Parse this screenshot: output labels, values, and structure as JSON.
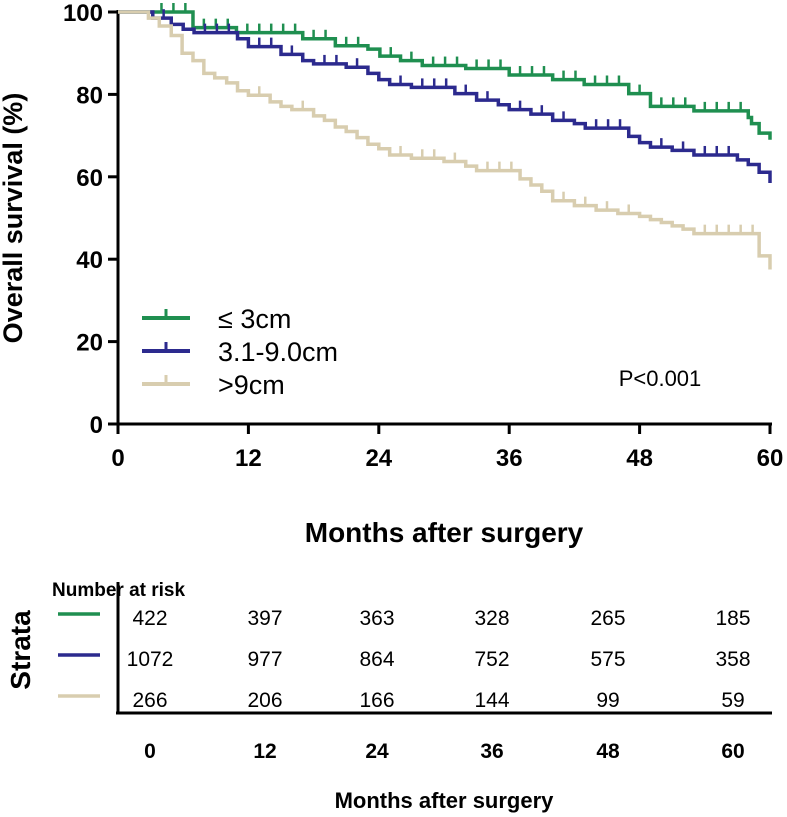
{
  "chart_data": {
    "type": "line",
    "subtype": "kaplan-meier",
    "xlabel": "Months after surgery",
    "ylabel": "Overall survival (%)",
    "xlim": [
      0,
      60
    ],
    "ylim": [
      0,
      100
    ],
    "xticks": [
      "0",
      "12",
      "24",
      "36",
      "48",
      "60"
    ],
    "yticks": [
      "0",
      "20",
      "40",
      "60",
      "80",
      "100"
    ],
    "annotation": "P<0.001",
    "legend_placement": "bottom-left",
    "series": [
      {
        "name": "≤ 3cm",
        "color": "#1f8f50",
        "steps": [
          [
            0,
            100
          ],
          [
            3,
            100
          ],
          [
            6.9,
            96.2
          ],
          [
            10.9,
            95
          ],
          [
            17,
            93.5
          ],
          [
            20,
            91.8
          ],
          [
            23,
            91
          ],
          [
            24.1,
            89.3
          ],
          [
            26,
            88.2
          ],
          [
            28,
            87
          ],
          [
            32,
            86.3
          ],
          [
            36,
            84.7
          ],
          [
            40,
            83.6
          ],
          [
            42.9,
            82.4
          ],
          [
            47,
            80.2
          ],
          [
            49,
            77.1
          ],
          [
            53,
            76
          ],
          [
            58,
            74.4
          ],
          [
            58.3,
            72.9
          ],
          [
            59,
            70.6
          ],
          [
            60,
            69
          ]
        ]
      },
      {
        "name": "3.1-9.0cm",
        "color": "#2c2a8e",
        "steps": [
          [
            0,
            100
          ],
          [
            3.2,
            98.5
          ],
          [
            4.9,
            97
          ],
          [
            6,
            95.8
          ],
          [
            7,
            95
          ],
          [
            11,
            93.5
          ],
          [
            12,
            91.6
          ],
          [
            15,
            89.7
          ],
          [
            17,
            88.2
          ],
          [
            18,
            87.4
          ],
          [
            21,
            86.6
          ],
          [
            23,
            85.1
          ],
          [
            24,
            83.6
          ],
          [
            25,
            82.4
          ],
          [
            27,
            81.7
          ],
          [
            31,
            80.2
          ],
          [
            33,
            78.6
          ],
          [
            35,
            77.5
          ],
          [
            36,
            76.3
          ],
          [
            38,
            75.2
          ],
          [
            40,
            73.7
          ],
          [
            42,
            72.9
          ],
          [
            43,
            71.8
          ],
          [
            47,
            69.8
          ],
          [
            48,
            68.3
          ],
          [
            49,
            67.2
          ],
          [
            51,
            66.4
          ],
          [
            53,
            65.3
          ],
          [
            57,
            64.1
          ],
          [
            58,
            63
          ],
          [
            59,
            61.1
          ],
          [
            60,
            58.5
          ]
        ]
      },
      {
        "name": ">9cm",
        "color": "#d8cdaf",
        "steps": [
          [
            0,
            100
          ],
          [
            2.8,
            98.5
          ],
          [
            3.8,
            96.6
          ],
          [
            4.9,
            94.3
          ],
          [
            5.9,
            90
          ],
          [
            6.9,
            88.2
          ],
          [
            7.9,
            85.1
          ],
          [
            8.9,
            84
          ],
          [
            10,
            82.8
          ],
          [
            11,
            80.9
          ],
          [
            12,
            79.8
          ],
          [
            14,
            78.2
          ],
          [
            15,
            77.1
          ],
          [
            16,
            76.3
          ],
          [
            18,
            74.8
          ],
          [
            19,
            73.7
          ],
          [
            20,
            72.1
          ],
          [
            21,
            71
          ],
          [
            22,
            69.5
          ],
          [
            23,
            67.9
          ],
          [
            24,
            66.8
          ],
          [
            25,
            65.3
          ],
          [
            27,
            64.5
          ],
          [
            30,
            63.7
          ],
          [
            32,
            62.6
          ],
          [
            33,
            61.5
          ],
          [
            37,
            59.5
          ],
          [
            38,
            58
          ],
          [
            39,
            56.5
          ],
          [
            40,
            54.2
          ],
          [
            42,
            53
          ],
          [
            44,
            51.9
          ],
          [
            46,
            51.1
          ],
          [
            48,
            50.4
          ],
          [
            49,
            49.6
          ],
          [
            50,
            48.9
          ],
          [
            51,
            48.1
          ],
          [
            52,
            47.3
          ],
          [
            53,
            46.2
          ],
          [
            59,
            40.8
          ],
          [
            60,
            37.5
          ]
        ]
      }
    ],
    "risk_table": {
      "title": "Number at risk",
      "ylabel": "Strata",
      "xlabel": "Months after surgery",
      "times": [
        "0",
        "12",
        "24",
        "36",
        "48",
        "60"
      ],
      "rows": [
        [
          "422",
          "397",
          "363",
          "328",
          "265",
          "185"
        ],
        [
          "1072",
          "977",
          "864",
          "752",
          "575",
          "358"
        ],
        [
          "266",
          "206",
          "166",
          "144",
          "99",
          "59"
        ]
      ]
    }
  }
}
